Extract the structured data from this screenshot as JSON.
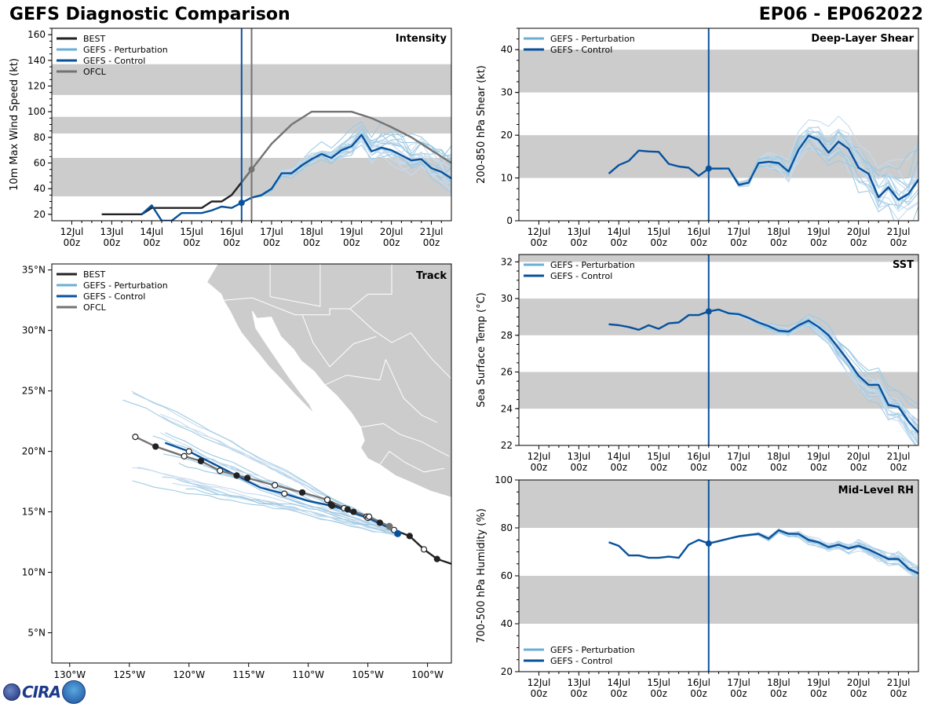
{
  "header": {
    "left_title": "GEFS Diagnostic Comparison",
    "right_title": "EP06 - EP062022"
  },
  "colors": {
    "best": "#222222",
    "perturbation": "#6aaed6",
    "control": "#08519c",
    "ofcl": "#737373",
    "band": "#cccccc",
    "land": "#cccccc"
  },
  "time_ticks": [
    "12Jul\n00z",
    "13Jul\n00z",
    "14Jul\n00z",
    "15Jul\n00z",
    "16Jul\n00z",
    "17Jul\n00z",
    "18Jul\n00z",
    "19Jul\n00z",
    "20Jul\n00z",
    "21Jul\n00z"
  ],
  "init_time_day": 16.25,
  "chart_data": [
    {
      "id": "intensity",
      "type": "line",
      "title": "Intensity",
      "ylabel": "10m Max Wind Speed (kt)",
      "ylim": [
        15,
        165
      ],
      "yticks": [
        20,
        40,
        60,
        80,
        100,
        120,
        140,
        160
      ],
      "xlim": [
        11.5,
        21.5
      ],
      "bands": [
        [
          34,
          64
        ],
        [
          83,
          96
        ],
        [
          113,
          137
        ]
      ],
      "ofcl_marker_day": 16.5,
      "legend": [
        "BEST",
        "GEFS - Perturbation",
        "GEFS - Control",
        "OFCL"
      ],
      "series": [
        {
          "name": "BEST",
          "x": [
            12.75,
            13,
            13.25,
            13.5,
            13.75,
            14,
            14.25,
            14.5,
            14.75,
            15,
            15.25,
            15.5,
            15.75,
            16,
            16.25,
            16.5
          ],
          "y": [
            20,
            20,
            20,
            20,
            20,
            25,
            25,
            25,
            25,
            25,
            25,
            30,
            30,
            35,
            45,
            55
          ]
        },
        {
          "name": "GEFS - Control",
          "x": [
            13.75,
            14,
            14.25,
            14.5,
            14.75,
            15,
            15.25,
            15.5,
            15.75,
            16,
            16.25,
            16.5,
            16.75,
            17,
            17.25,
            17.5,
            17.75,
            18,
            18.25,
            18.5,
            18.75,
            19,
            19.25,
            19.5,
            19.75,
            20,
            20.25,
            20.5,
            20.75,
            21,
            21.25,
            21.5
          ],
          "y": [
            20,
            27,
            15,
            15,
            21,
            21,
            21,
            23,
            26,
            25,
            29,
            33,
            35,
            40,
            52,
            52,
            58,
            63,
            67,
            64,
            70,
            73,
            82,
            69,
            72,
            70,
            66,
            62,
            63,
            56,
            53,
            48
          ]
        },
        {
          "name": "OFCL",
          "x": [
            16.25,
            16.5,
            17,
            17.5,
            18,
            18.5,
            19,
            19.5,
            20,
            20.5,
            21,
            21.5
          ],
          "y": [
            45,
            55,
            75,
            90,
            100,
            100,
            100,
            95,
            88,
            80,
            70,
            60
          ]
        }
      ]
    },
    {
      "id": "shear",
      "type": "line",
      "title": "Deep-Layer Shear",
      "ylabel": "200-850 hPa Shear (kt)",
      "ylim": [
        0,
        45
      ],
      "yticks": [
        0,
        10,
        20,
        30,
        40
      ],
      "xlim": [
        11.5,
        21.5
      ],
      "bands": [
        [
          10,
          20
        ],
        [
          30,
          40
        ]
      ],
      "legend": [
        "GEFS - Perturbation",
        "GEFS - Control"
      ],
      "series": [
        {
          "name": "GEFS - Control",
          "x": [
            13.75,
            14,
            14.25,
            14.5,
            14.75,
            15,
            15.25,
            15.5,
            15.75,
            16,
            16.25,
            16.5,
            16.75,
            17,
            17.25,
            17.5,
            17.75,
            18,
            18.25,
            18.5,
            18.75,
            19,
            19.25,
            19.5,
            19.75,
            20,
            20.25,
            20.5,
            20.75,
            21,
            21.25,
            21.5
          ],
          "y": [
            11,
            13,
            14,
            16.4,
            16.2,
            16.1,
            13.3,
            12.7,
            12.4,
            10.5,
            12.2,
            12.2,
            12.2,
            8.4,
            8.9,
            13.5,
            13.8,
            13.5,
            11.5,
            16.6,
            19.9,
            18.9,
            15.9,
            18.5,
            16.8,
            12.4,
            11,
            5.5,
            7.8,
            4.9,
            6.3,
            9.6
          ]
        }
      ]
    },
    {
      "id": "sst",
      "type": "line",
      "title": "SST",
      "ylabel": "Sea Surface Temp (°C)",
      "ylim": [
        22,
        32.4
      ],
      "yticks": [
        22,
        24,
        26,
        28,
        30,
        32
      ],
      "xlim": [
        11.5,
        21.5
      ],
      "bands": [
        [
          24,
          26
        ],
        [
          28,
          30
        ],
        [
          32,
          33
        ]
      ],
      "legend": [
        "GEFS - Perturbation",
        "GEFS - Control"
      ],
      "series": [
        {
          "name": "GEFS - Control",
          "x": [
            13.75,
            14,
            14.25,
            14.5,
            14.75,
            15,
            15.25,
            15.5,
            15.75,
            16,
            16.25,
            16.5,
            16.75,
            17,
            17.25,
            17.5,
            17.75,
            18,
            18.25,
            18.5,
            18.75,
            19,
            19.25,
            19.5,
            19.75,
            20,
            20.25,
            20.5,
            20.75,
            21,
            21.25,
            21.5
          ],
          "y": [
            28.6,
            28.55,
            28.45,
            28.3,
            28.55,
            28.35,
            28.65,
            28.7,
            29.1,
            29.1,
            29.3,
            29.4,
            29.2,
            29.15,
            28.95,
            28.7,
            28.5,
            28.25,
            28.2,
            28.55,
            28.8,
            28.45,
            28,
            27.3,
            26.6,
            25.8,
            25.3,
            25.3,
            24.2,
            24.1,
            23.3,
            22.7
          ]
        }
      ]
    },
    {
      "id": "rh",
      "type": "line",
      "title": "Mid-Level RH",
      "ylabel": "700-500 hPa Humidity (%)",
      "ylim": [
        20,
        100
      ],
      "yticks": [
        20,
        40,
        60,
        80,
        100
      ],
      "xlim": [
        11.5,
        21.5
      ],
      "bands": [
        [
          40,
          60
        ],
        [
          80,
          100
        ]
      ],
      "legend": [
        "GEFS - Perturbation",
        "GEFS - Control"
      ],
      "series": [
        {
          "name": "GEFS - Control",
          "x": [
            13.75,
            14,
            14.25,
            14.5,
            14.75,
            15,
            15.25,
            15.5,
            15.75,
            16,
            16.25,
            16.5,
            16.75,
            17,
            17.25,
            17.5,
            17.75,
            18,
            18.25,
            18.5,
            18.75,
            19,
            19.25,
            19.5,
            19.75,
            20,
            20.25,
            20.5,
            20.75,
            21,
            21.25,
            21.5
          ],
          "y": [
            74,
            72.5,
            68.5,
            68.5,
            67.5,
            67.5,
            68,
            67.5,
            73,
            75,
            73.5,
            74.5,
            75.5,
            76.5,
            77,
            77.5,
            75.5,
            79,
            77.5,
            77.5,
            75,
            74,
            72,
            73,
            71.5,
            72.5,
            71,
            69,
            67,
            67,
            63,
            61
          ]
        }
      ]
    },
    {
      "id": "track",
      "type": "line",
      "title": "Track",
      "xlim": [
        -131.5,
        -98
      ],
      "ylim": [
        2.5,
        35.5
      ],
      "xticks": [
        -130,
        -125,
        -120,
        -115,
        -110,
        -105,
        -100
      ],
      "xtick_labels": [
        "130°W",
        "125°W",
        "120°W",
        "115°W",
        "110°W",
        "105°W",
        "100°W"
      ],
      "yticks": [
        5,
        10,
        15,
        20,
        25,
        30,
        35
      ],
      "ytick_labels": [
        "5°N",
        "10°N",
        "15°N",
        "20°N",
        "25°N",
        "30°N",
        "35°N"
      ],
      "legend": [
        "BEST",
        "GEFS - Perturbation",
        "GEFS - Control",
        "OFCL"
      ],
      "series": [
        {
          "name": "BEST",
          "lon": [
            -98,
            -99.2,
            -100.3,
            -101.5,
            -102.8,
            -104,
            -105.1,
            -106.2,
            -107,
            -108.1,
            -108.4
          ],
          "lat": [
            10.7,
            11.1,
            11.9,
            13.0,
            13.5,
            14.1,
            14.6,
            15.0,
            15.3,
            15.6,
            16.0
          ]
        },
        {
          "name": "GEFS - Control",
          "lon": [
            -102.5,
            -103.5,
            -105,
            -106.5,
            -108,
            -110,
            -112,
            -114,
            -116,
            -118,
            -120,
            -122
          ],
          "lat": [
            13.2,
            13.8,
            14.5,
            15.0,
            15.5,
            15.9,
            16.5,
            17.0,
            18.0,
            19.0,
            20.0,
            20.7
          ]
        },
        {
          "name": "OFCL",
          "lon": [
            -103.2,
            -104.9,
            -106.7,
            -108.4,
            -110.5,
            -112.8,
            -115.1,
            -117.4,
            -119.0,
            -120.4,
            -122.8,
            -124.5
          ],
          "lat": [
            13.8,
            14.6,
            15.2,
            16.0,
            16.6,
            17.2,
            17.8,
            18.4,
            19.2,
            19.6,
            20.4,
            21.2
          ]
        }
      ]
    }
  ]
}
